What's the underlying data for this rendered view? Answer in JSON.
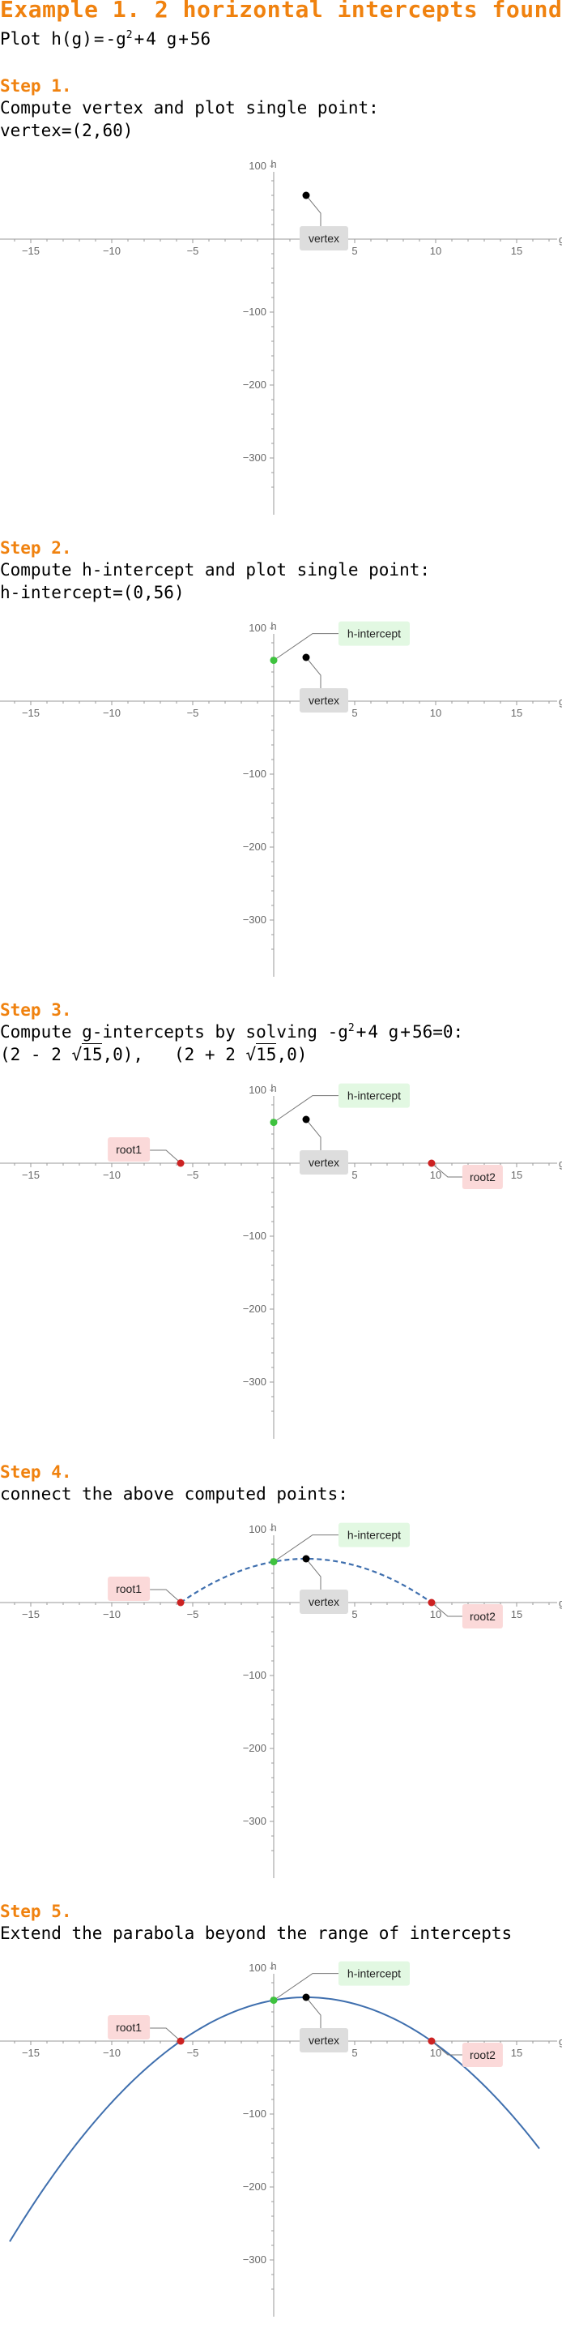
{
  "title": "Example 1. 2 horizontal intercepts found",
  "intro": {
    "prefix": "Plot ",
    "func": "h",
    "lparen": "(",
    "arg": "g",
    "rparen": ")",
    "eq": "=",
    "t1": "-g",
    "exp": "2",
    "t2": "+",
    "t3": "4",
    "t4": "g",
    "t5": "+",
    "t6": "56"
  },
  "steps": [
    {
      "label": "Step 1.",
      "line1": "Compute vertex and plot single point:",
      "line2": {
        "name": "vertex",
        "eq": "=",
        "value": "(2,60)"
      }
    },
    {
      "label": "Step 2.",
      "line1": "Compute h-intercept and plot single point:",
      "line2": {
        "name": "h-intercept",
        "eq": "=",
        "value": "(0,56)"
      }
    },
    {
      "label": "Step 3.",
      "line1": {
        "text": "Compute g-intercepts by solving ",
        "t1": "-g",
        "exp": "2",
        "t2": "+",
        "t3": "4 g",
        "t4": "+",
        "t5": "56",
        "t6": "=0:"
      },
      "line2": {
        "r1_open": "(2 - 2",
        "r1_sqrt": "√",
        "r1_rad": "15",
        "r1_close": ",0),",
        "r2_open": "(2 + 2",
        "r2_sqrt": "√",
        "r2_rad": "15",
        "r2_close": ",0)"
      }
    },
    {
      "label": "Step 4.",
      "line1": "connect the above computed points:"
    },
    {
      "label": "Step 5.",
      "line1": "Extend the parabola beyond the range of intercepts"
    }
  ],
  "callouts": {
    "vertex": "vertex",
    "h_intercept": "h-intercept",
    "root1": "root1",
    "root2": "root2"
  },
  "colors": {
    "heading": "#f0820f",
    "vertex_point": "#000000",
    "h_intercept_point": "#3ec23e",
    "root_point": "#cc2222",
    "curve": "#3f6fae",
    "vertex_label_bg": "#dddddd",
    "h_intercept_label_bg": "#e2f8e2",
    "root_label_bg": "#fbd9d9"
  },
  "chart_data": [
    {
      "type": "scatter",
      "xlabel": "g",
      "ylabel": "h",
      "xlim": [
        -17,
        17.5
      ],
      "ylim": [
        -350,
        115
      ],
      "xticks": [
        -15,
        -10,
        -5,
        5,
        10,
        15
      ],
      "yticks": [
        100,
        -100,
        -200,
        -300
      ],
      "points": [
        {
          "role": "vertex",
          "x": 2,
          "y": 60
        }
      ],
      "curve": "none"
    },
    {
      "type": "scatter",
      "xlabel": "g",
      "ylabel": "h",
      "xlim": [
        -17,
        17.5
      ],
      "ylim": [
        -350,
        115
      ],
      "xticks": [
        -15,
        -10,
        -5,
        5,
        10,
        15
      ],
      "yticks": [
        100,
        -100,
        -200,
        -300
      ],
      "points": [
        {
          "role": "vertex",
          "x": 2,
          "y": 60
        },
        {
          "role": "h_intercept",
          "x": 0,
          "y": 56
        }
      ],
      "curve": "none"
    },
    {
      "type": "scatter",
      "xlabel": "g",
      "ylabel": "h",
      "xlim": [
        -17,
        17.5
      ],
      "ylim": [
        -350,
        115
      ],
      "xticks": [
        -15,
        -10,
        -5,
        5,
        10,
        15
      ],
      "yticks": [
        100,
        -100,
        -200,
        -300
      ],
      "points": [
        {
          "role": "vertex",
          "x": 2,
          "y": 60
        },
        {
          "role": "h_intercept",
          "x": 0,
          "y": 56
        },
        {
          "role": "root1",
          "x": -5.746,
          "y": 0
        },
        {
          "role": "root2",
          "x": 9.746,
          "y": 0
        }
      ],
      "curve": "none"
    },
    {
      "type": "line",
      "xlabel": "g",
      "ylabel": "h",
      "xlim": [
        -17,
        17.5
      ],
      "ylim": [
        -350,
        115
      ],
      "xticks": [
        -15,
        -10,
        -5,
        5,
        10,
        15
      ],
      "yticks": [
        100,
        -100,
        -200,
        -300
      ],
      "points": [
        {
          "role": "vertex",
          "x": 2,
          "y": 60
        },
        {
          "role": "h_intercept",
          "x": 0,
          "y": 56
        },
        {
          "role": "root1",
          "x": -5.746,
          "y": 0
        },
        {
          "role": "root2",
          "x": 9.746,
          "y": 0
        }
      ],
      "curve": "dashed",
      "curve_domain": [
        -5.746,
        9.746
      ],
      "function": {
        "a": -1,
        "b": 4,
        "c": 56
      }
    },
    {
      "type": "line",
      "xlabel": "g",
      "ylabel": "h",
      "xlim": [
        -17,
        17.5
      ],
      "ylim": [
        -350,
        115
      ],
      "xticks": [
        -15,
        -10,
        -5,
        5,
        10,
        15
      ],
      "yticks": [
        100,
        -100,
        -200,
        -300
      ],
      "points": [
        {
          "role": "vertex",
          "x": 2,
          "y": 60
        },
        {
          "role": "h_intercept",
          "x": 0,
          "y": 56
        },
        {
          "role": "root1",
          "x": -5.746,
          "y": 0
        },
        {
          "role": "root2",
          "x": 9.746,
          "y": 0
        }
      ],
      "curve": "solid",
      "curve_domain": [
        -16.3,
        16.4
      ],
      "function": {
        "a": -1,
        "b": 4,
        "c": 56
      }
    }
  ]
}
